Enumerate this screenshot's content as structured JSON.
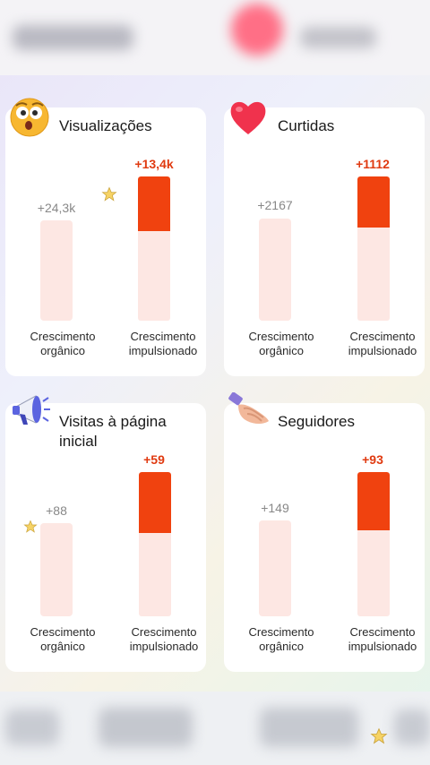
{
  "colors": {
    "boost": "#f0420f",
    "boost_value_text": "#e03a10",
    "organic_bar": "#fde7e3",
    "card_bg": "#ffffff"
  },
  "cards": [
    {
      "icon": "astonished-face-icon",
      "title": "Visualizações",
      "organic_value": "+24,3k",
      "boosted_value": "+13,4k",
      "organic_label_1": "Crescimento",
      "organic_label_2": "orgânico",
      "boosted_label_1": "Crescimento",
      "boosted_label_2": "impulsionado"
    },
    {
      "icon": "heart-icon",
      "title": "Curtidas",
      "organic_value": "+2167",
      "boosted_value": "+1112",
      "organic_label_1": "Crescimento",
      "organic_label_2": "orgânico",
      "boosted_label_1": "Crescimento",
      "boosted_label_2": "impulsionado"
    },
    {
      "icon": "megaphone-icon",
      "title": "Visitas à página inicial",
      "organic_value": "+88",
      "boosted_value": "+59",
      "organic_label_1": "Crescimento",
      "organic_label_2": "orgânico",
      "boosted_label_1": "Crescimento",
      "boosted_label_2": "impulsionado"
    },
    {
      "icon": "handshake-icon",
      "title": "Seguidores",
      "organic_value": "+149",
      "boosted_value": "+93",
      "organic_label_1": "Crescimento",
      "organic_label_2": "orgânico",
      "boosted_label_1": "Crescimento",
      "boosted_label_2": "impulsionado"
    }
  ]
}
